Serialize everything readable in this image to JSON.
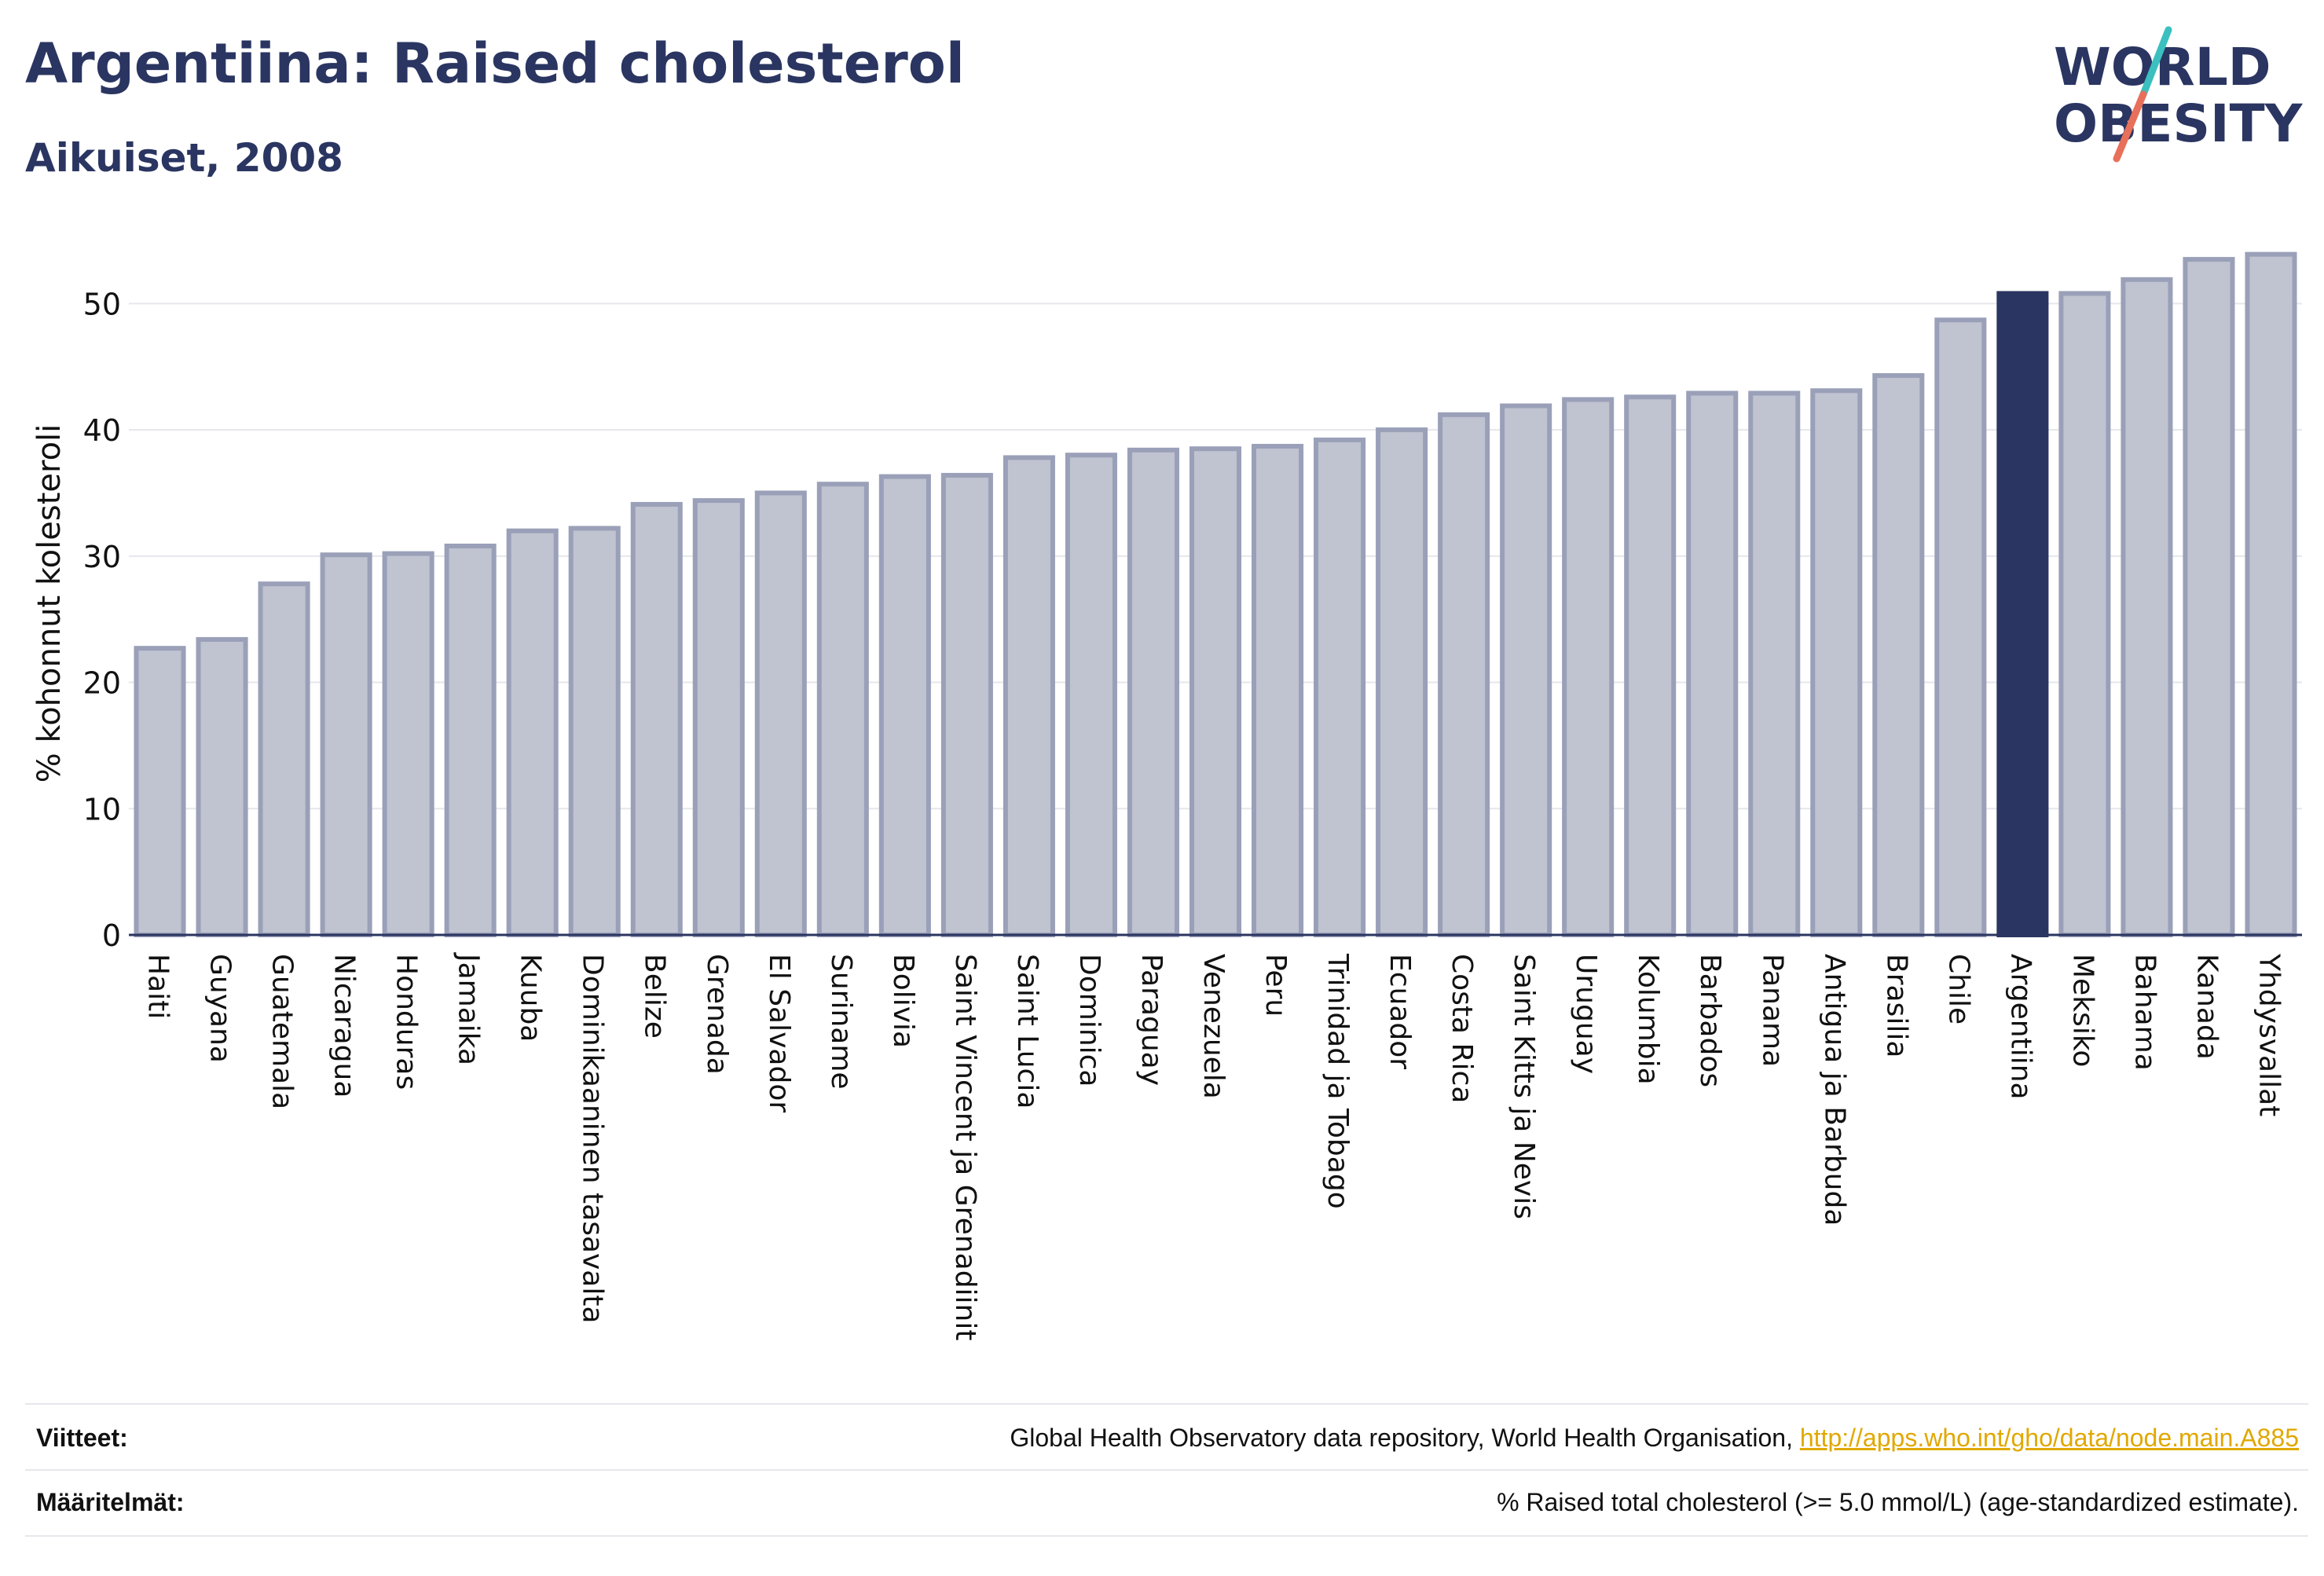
{
  "header": {
    "title": "Argentiina: Raised cholesterol",
    "subtitle": "Aikuiset, 2008"
  },
  "logo": {
    "line1": "WORLD",
    "line2": "OBESITY",
    "icon": "world-obesity-logo"
  },
  "colors": {
    "bar": "#c0c3d0",
    "bar_stroke": "#9aa0b8",
    "highlight": "#2a3561",
    "grid": "#e6e7ec",
    "link": "#e0a800"
  },
  "chart_data": {
    "type": "bar",
    "ylabel": "% kohonnut kolesteroli",
    "ylim": [
      0,
      55
    ],
    "yticks": [
      0,
      10,
      20,
      30,
      40,
      50
    ],
    "grid": true,
    "highlight": "Argentiina",
    "categories": [
      "Haiti",
      "Guyana",
      "Guatemala",
      "Nicaragua",
      "Honduras",
      "Jamaika",
      "Kuuba",
      "Dominikaaninen tasavalta",
      "Belize",
      "Grenada",
      "El Salvador",
      "Suriname",
      "Bolivia",
      "Saint Vincent ja Grenadiinit",
      "Saint Lucia",
      "Dominica",
      "Paraguay",
      "Venezuela",
      "Peru",
      "Trinidad ja Tobago",
      "Ecuador",
      "Costa Rica",
      "Saint Kitts ja Nevis",
      "Uruguay",
      "Kolumbia",
      "Barbados",
      "Panama",
      "Antigua ja Barbuda",
      "Brasilia",
      "Chile",
      "Argentiina",
      "Meksiko",
      "Bahama",
      "Kanada",
      "Yhdysvallat"
    ],
    "values": [
      22.7,
      23.4,
      27.8,
      30.1,
      30.2,
      30.8,
      32.0,
      32.2,
      34.1,
      34.4,
      35.0,
      35.7,
      36.3,
      36.4,
      37.8,
      38.0,
      38.4,
      38.5,
      38.7,
      39.2,
      40.0,
      41.2,
      41.9,
      42.4,
      42.6,
      42.9,
      42.9,
      43.1,
      44.3,
      48.7,
      50.8,
      50.8,
      51.9,
      53.5,
      53.9
    ]
  },
  "footer": {
    "sources_label": "Viitteet:",
    "sources_text": "Global Health Observatory data repository, World Health Organisation, ",
    "sources_link": "http://apps.who.int/gho/data/node.main.A885",
    "definitions_label": "Määritelmät:",
    "definitions_text": "% Raised total cholesterol (>= 5.0 mmol/L) (age-standardized estimate)."
  }
}
